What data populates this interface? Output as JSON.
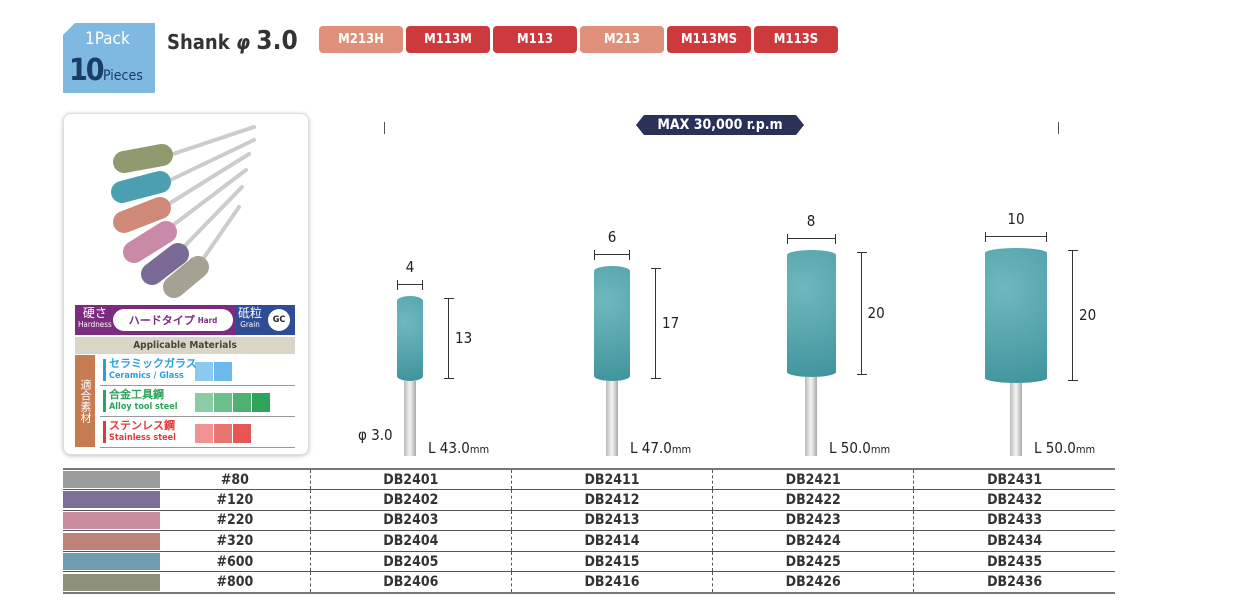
{
  "pack": {
    "line1": "1Pack",
    "count": "10",
    "unit": "Pieces"
  },
  "shank": {
    "label": "Shank",
    "symbol": "φ",
    "size": "3.0"
  },
  "model_tags": [
    {
      "label": "M213H",
      "color": "#e0907a"
    },
    {
      "label": "M113M",
      "color": "#cc3a3e"
    },
    {
      "label": "M113",
      "color": "#cc3a3e"
    },
    {
      "label": "M213",
      "color": "#e0907a"
    },
    {
      "label": "M113MS",
      "color": "#cc3a3e"
    },
    {
      "label": "M113S",
      "color": "#cc3a3e"
    }
  ],
  "max_speed": "MAX 30,000 r.p.m",
  "spec_card": {
    "hardness_jp": "硬さ",
    "hardness_en": "Hardness",
    "hardness_value_jp": "ハードタイプ",
    "hardness_value_en": "Hard",
    "grain_jp": "砥粒",
    "grain_en": "Grain",
    "grain_value": "GC",
    "applicable_title": "Applicable Materials",
    "side_label": "適合素材",
    "materials": [
      {
        "jp": "セラミックガラス",
        "en": "Ceramics / Glass",
        "color": "#2b9ee0",
        "level": 2
      },
      {
        "jp": "合金工具鋼",
        "en": "Alloy tool steel",
        "color": "#2ea35a",
        "level": 4
      },
      {
        "jp": "ステンレス鋼",
        "en": "Stainless steel",
        "color": "#e03a36",
        "level": 3
      }
    ]
  },
  "tools": [
    {
      "diameter": "4",
      "head_length": "13",
      "total_length": "L 43.0",
      "unit": "mm",
      "shank": "φ 3.0"
    },
    {
      "diameter": "6",
      "head_length": "17",
      "total_length": "L 47.0",
      "unit": "mm"
    },
    {
      "diameter": "8",
      "head_length": "20",
      "total_length": "L 50.0",
      "unit": "mm"
    },
    {
      "diameter": "10",
      "head_length": "20",
      "total_length": "L 50.0",
      "unit": "mm"
    }
  ],
  "table": [
    {
      "color": "#9a9c9c",
      "grit": "#80",
      "codes": [
        "DB2401",
        "DB2411",
        "DB2421",
        "DB2431"
      ]
    },
    {
      "color": "#7d6f96",
      "grit": "#120",
      "codes": [
        "DB2402",
        "DB2412",
        "DB2422",
        "DB2432"
      ]
    },
    {
      "color": "#c88c9c",
      "grit": "#220",
      "codes": [
        "DB2403",
        "DB2413",
        "DB2423",
        "DB2433"
      ]
    },
    {
      "color": "#bd8378",
      "grit": "#320",
      "codes": [
        "DB2404",
        "DB2414",
        "DB2424",
        "DB2434"
      ]
    },
    {
      "color": "#6f9cae",
      "grit": "#600",
      "codes": [
        "DB2405",
        "DB2415",
        "DB2425",
        "DB2435"
      ]
    },
    {
      "color": "#8e917a",
      "grit": "#800",
      "codes": [
        "DB2406",
        "DB2416",
        "DB2426",
        "DB2436"
      ]
    }
  ]
}
